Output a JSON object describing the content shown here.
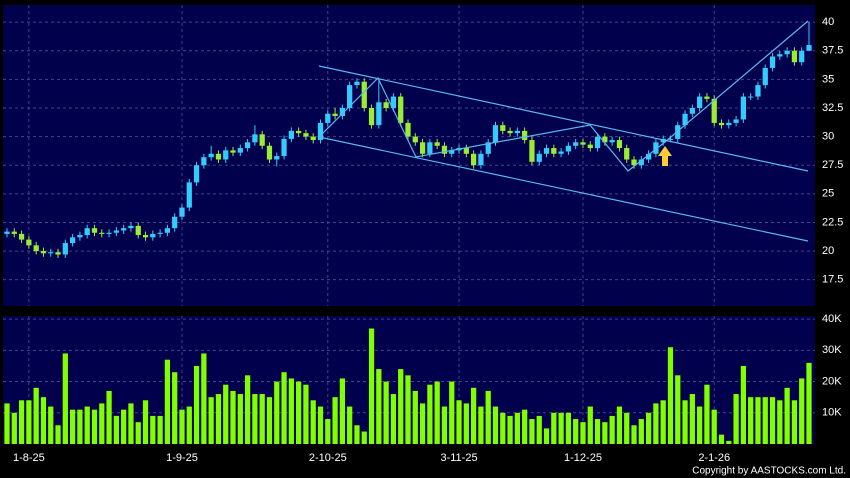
{
  "chart_data": [
    {
      "type": "candlestick",
      "categories": [
        null,
        null,
        null,
        "1-8-25",
        null,
        null,
        null,
        null,
        null,
        null,
        null,
        null,
        null,
        null,
        null,
        null,
        null,
        null,
        null,
        null,
        null,
        null,
        null,
        null,
        "1-9-25",
        null,
        null,
        null,
        null,
        null,
        null,
        null,
        null,
        null,
        null,
        null,
        null,
        null,
        null,
        null,
        null,
        null,
        null,
        null,
        "2-10-25",
        null,
        null,
        null,
        null,
        null,
        null,
        null,
        null,
        null,
        null,
        null,
        null,
        null,
        null,
        null,
        null,
        null,
        "3-11-25",
        null,
        null,
        null,
        null,
        null,
        null,
        null,
        null,
        null,
        null,
        null,
        null,
        null,
        null,
        null,
        null,
        "1-12-25",
        null,
        null,
        null,
        null,
        null,
        null,
        null,
        null,
        null,
        null,
        null,
        null,
        null,
        null,
        null,
        null,
        null,
        "2-1-26",
        null,
        null,
        null,
        null,
        null,
        null,
        null,
        null,
        null,
        null,
        null,
        null,
        null
      ],
      "open": [
        21.5,
        21.7,
        21.5,
        21.0,
        20.5,
        20.0,
        19.8,
        19.9,
        19.7,
        20.7,
        21.2,
        21.4,
        22.0,
        21.6,
        21.5,
        21.6,
        21.8,
        22.0,
        22.2,
        21.4,
        21.2,
        21.5,
        21.6,
        22.0,
        23.0,
        23.8,
        26.0,
        27.5,
        28.2,
        28.5,
        28.0,
        28.8,
        28.6,
        29.0,
        29.5,
        30.2,
        29.2,
        28.0,
        28.3,
        29.8,
        30.5,
        30.3,
        30.0,
        29.7,
        31.2,
        32.0,
        31.8,
        32.5,
        34.5,
        34.8,
        32.5,
        31.0,
        33.0,
        32.5,
        33.5,
        31.2,
        30.0,
        29.5,
        28.5,
        29.5,
        29.2,
        28.5,
        28.8,
        29.0,
        28.5,
        27.5,
        28.5,
        29.5,
        31.0,
        30.5,
        30.3,
        30.5,
        29.7,
        27.8,
        28.5,
        29.0,
        28.5,
        28.7,
        29.2,
        29.5,
        29.3,
        29.0,
        30.0,
        29.5,
        29.7,
        29.0,
        28.0,
        27.5,
        28.0,
        28.5,
        29.5,
        29.8,
        29.8,
        31.0,
        32.0,
        32.5,
        33.5,
        33.3,
        31.2,
        31.0,
        31.2,
        31.5,
        33.5,
        33.5,
        34.5,
        36.0,
        37.0,
        37.2,
        37.5,
        36.5,
        37.5
      ],
      "high": [
        22.0,
        22.0,
        21.8,
        21.3,
        20.8,
        20.3,
        20.2,
        20.2,
        21.0,
        21.5,
        21.7,
        22.3,
        22.3,
        21.9,
        21.9,
        22.1,
        22.3,
        22.5,
        22.5,
        21.7,
        21.8,
        21.9,
        22.3,
        23.3,
        24.1,
        26.3,
        27.8,
        28.5,
        29.2,
        28.8,
        29.1,
        29.1,
        29.3,
        29.8,
        31.0,
        30.5,
        29.5,
        28.6,
        30.1,
        30.8,
        30.8,
        30.6,
        30.3,
        31.5,
        32.3,
        32.5,
        32.8,
        34.8,
        35.1,
        35.1,
        32.8,
        35.0,
        33.3,
        33.8,
        33.8,
        31.5,
        30.3,
        29.8,
        29.8,
        29.8,
        29.5,
        29.1,
        29.3,
        29.3,
        28.8,
        28.8,
        29.8,
        31.3,
        31.3,
        30.8,
        30.8,
        30.8,
        30.0,
        28.8,
        29.3,
        29.3,
        29.0,
        29.5,
        29.8,
        29.8,
        29.6,
        30.3,
        30.3,
        30.0,
        30.0,
        29.3,
        28.3,
        28.3,
        28.8,
        29.8,
        30.1,
        30.1,
        31.3,
        32.3,
        32.8,
        33.8,
        33.8,
        33.6,
        31.5,
        31.5,
        31.8,
        33.8,
        33.8,
        34.8,
        36.3,
        37.3,
        37.5,
        37.8,
        37.8,
        37.8,
        40.0
      ],
      "low": [
        21.2,
        21.2,
        20.7,
        20.2,
        19.7,
        19.5,
        19.5,
        19.4,
        19.4,
        20.4,
        20.9,
        21.1,
        21.3,
        21.2,
        21.2,
        21.3,
        21.5,
        21.7,
        21.1,
        20.9,
        20.9,
        21.2,
        21.3,
        21.7,
        22.7,
        23.5,
        25.7,
        27.2,
        27.9,
        27.7,
        27.7,
        28.3,
        28.3,
        28.7,
        29.2,
        28.9,
        27.7,
        27.4,
        28.0,
        29.5,
        30.0,
        29.7,
        29.4,
        29.4,
        30.9,
        31.5,
        31.5,
        32.2,
        34.2,
        32.2,
        30.7,
        30.7,
        32.2,
        32.2,
        30.9,
        29.7,
        29.2,
        28.2,
        28.2,
        28.9,
        28.2,
        28.2,
        28.5,
        28.2,
        27.2,
        27.2,
        28.2,
        29.2,
        30.2,
        30.0,
        30.0,
        29.4,
        27.5,
        27.5,
        28.2,
        28.2,
        28.2,
        28.4,
        28.9,
        29.0,
        28.7,
        28.7,
        29.2,
        29.2,
        28.7,
        27.7,
        27.2,
        27.2,
        27.7,
        28.2,
        29.2,
        29.5,
        29.5,
        30.7,
        31.7,
        32.2,
        33.0,
        30.9,
        30.7,
        30.7,
        30.9,
        31.2,
        33.2,
        33.2,
        34.2,
        35.7,
        36.7,
        36.9,
        36.2,
        36.2,
        37.7
      ],
      "close": [
        21.7,
        21.5,
        21.0,
        20.5,
        20.0,
        19.8,
        19.9,
        19.7,
        20.7,
        21.2,
        21.4,
        22.0,
        21.6,
        21.5,
        21.6,
        21.8,
        22.0,
        22.2,
        21.4,
        21.2,
        21.5,
        21.6,
        22.0,
        23.0,
        23.8,
        26.0,
        27.5,
        28.2,
        28.5,
        28.0,
        28.8,
        28.6,
        29.0,
        29.5,
        30.2,
        29.2,
        28.0,
        28.3,
        29.8,
        30.5,
        30.3,
        30.0,
        29.7,
        31.2,
        32.0,
        31.8,
        32.5,
        34.5,
        34.8,
        32.5,
        31.0,
        33.0,
        32.5,
        33.5,
        31.2,
        30.0,
        29.5,
        28.5,
        29.5,
        29.2,
        28.5,
        28.8,
        29.0,
        28.5,
        27.5,
        28.5,
        29.5,
        31.0,
        30.5,
        30.3,
        30.5,
        29.7,
        27.8,
        28.5,
        29.0,
        28.5,
        28.7,
        29.2,
        29.5,
        29.3,
        29.0,
        30.0,
        29.5,
        29.7,
        29.0,
        28.0,
        27.5,
        28.0,
        28.5,
        29.5,
        29.8,
        29.8,
        31.0,
        32.0,
        32.5,
        33.5,
        33.3,
        31.2,
        31.0,
        31.2,
        31.5,
        33.5,
        33.5,
        34.5,
        36.0,
        37.0,
        37.2,
        37.5,
        36.5,
        37.5,
        38.0
      ],
      "up_color": "#33ccff",
      "down_color": "#99ee33",
      "ylim": [
        15.2,
        41.5
      ],
      "yticks": [
        17.5,
        20,
        22.5,
        25,
        27.5,
        30,
        32.5,
        35,
        37.5,
        40
      ],
      "grid": true
    },
    {
      "type": "bar",
      "values": [
        13000,
        10000,
        14000,
        14000,
        18000,
        15000,
        12000,
        6000,
        29000,
        11000,
        11000,
        12000,
        11000,
        13000,
        17000,
        9000,
        11000,
        13000,
        7000,
        14000,
        9000,
        9000,
        27000,
        23000,
        11000,
        12000,
        25000,
        29000,
        15000,
        16000,
        19000,
        17000,
        16000,
        22000,
        16000,
        16000,
        15000,
        20000,
        23000,
        21000,
        20000,
        19000,
        14000,
        12000,
        8000,
        15000,
        21000,
        12000,
        6000,
        4000,
        37000,
        24000,
        20000,
        16000,
        24000,
        22000,
        17000,
        13000,
        19000,
        20000,
        12000,
        20000,
        14000,
        13000,
        18000,
        12000,
        17000,
        12000,
        10000,
        9000,
        10000,
        11000,
        8000,
        9000,
        5000,
        10000,
        10000,
        10000,
        8000,
        7000,
        12000,
        8000,
        7000,
        9000,
        12000,
        10000,
        6000,
        8000,
        10000,
        13000,
        14000,
        31000,
        22000,
        14000,
        16000,
        12000,
        19000,
        11000,
        3000,
        1000,
        16000,
        25000,
        15000,
        15000,
        15000,
        15000,
        14000,
        18000,
        14000,
        21000,
        26000
      ],
      "color": "#80ff00",
      "ylim": [
        0,
        41000
      ],
      "yticks": [
        {
          "value": 10000,
          "label": "10K"
        },
        {
          "value": 20000,
          "label": "20K"
        },
        {
          "value": 30000,
          "label": "30K"
        },
        {
          "value": 40000,
          "label": "40K"
        }
      ],
      "grid": true
    }
  ],
  "copyright": "Copyright by AASTOCKS.com Ltd."
}
